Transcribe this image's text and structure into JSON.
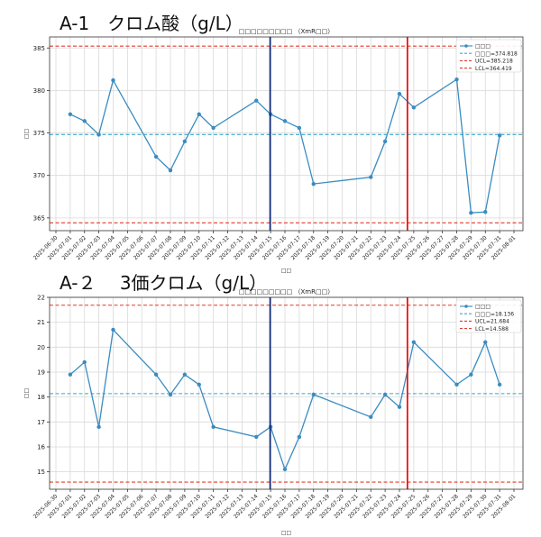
{
  "sections": [
    {
      "title": "A-1　クロム酸（g/L）"
    },
    {
      "title": "A-２　 3価クロム（g/L）"
    }
  ],
  "chart_data": [
    {
      "type": "line",
      "title": "□□□□□□□□□ （XmR□□）",
      "xlabel": "□□",
      "ylabel": "□□",
      "categories": [
        "2025-06-30",
        "2025-07-01",
        "2025-07-02",
        "2025-07-03",
        "2025-07-04",
        "2025-07-05",
        "2025-07-06",
        "2025-07-07",
        "2025-07-08",
        "2025-07-09",
        "2025-07-10",
        "2025-07-11",
        "2025-07-12",
        "2025-07-13",
        "2025-07-14",
        "2025-07-15",
        "2025-07-16",
        "2025-07-17",
        "2025-07-18",
        "2025-07-19",
        "2025-07-20",
        "2025-07-21",
        "2025-07-22",
        "2025-07-23",
        "2025-07-24",
        "2025-07-25",
        "2025-07-26",
        "2025-07-27",
        "2025-07-28",
        "2025-07-29",
        "2025-07-30",
        "2025-07-31",
        "2025-08-01"
      ],
      "ylim": [
        363.5,
        386.3
      ],
      "yticks": [
        365,
        370,
        375,
        380,
        385
      ],
      "grid": true,
      "legend_position": "top-right",
      "series": [
        {
          "name": "□□□",
          "color": "#3a8cc0",
          "x": [
            "2025-07-01",
            "2025-07-02",
            "2025-07-03",
            "2025-07-04",
            "2025-07-07",
            "2025-07-08",
            "2025-07-09",
            "2025-07-10",
            "2025-07-11",
            "2025-07-14",
            "2025-07-15",
            "2025-07-16",
            "2025-07-17",
            "2025-07-18",
            "2025-07-22",
            "2025-07-23",
            "2025-07-24",
            "2025-07-25",
            "2025-07-28",
            "2025-07-29",
            "2025-07-30",
            "2025-07-31"
          ],
          "y": [
            377.2,
            376.4,
            374.8,
            381.2,
            372.2,
            370.6,
            374.0,
            377.2,
            375.6,
            378.8,
            377.2,
            376.4,
            375.6,
            369.0,
            369.8,
            374.0,
            379.6,
            378.0,
            381.3,
            365.6,
            365.7,
            374.7
          ]
        }
      ],
      "reference_lines": [
        {
          "label": "□□□=374.818",
          "value": 374.818,
          "color": "#3aa8c8"
        },
        {
          "label": "UCL=385.218",
          "value": 385.218,
          "color": "#e03c2c"
        },
        {
          "label": "LCL=364.419",
          "value": 364.419,
          "color": "#e03c2c"
        }
      ],
      "marker_lines": [
        {
          "x": "2025-07-15",
          "color": "#0d2a7a"
        },
        {
          "x": "2025-07-25",
          "color": "#ee1111"
        }
      ]
    },
    {
      "type": "line",
      "title": "□□□□□□□□□ （XmR□□）",
      "xlabel": "□□",
      "ylabel": "□□",
      "categories": [
        "2025-06-30",
        "2025-07-01",
        "2025-07-02",
        "2025-07-03",
        "2025-07-04",
        "2025-07-05",
        "2025-07-06",
        "2025-07-07",
        "2025-07-08",
        "2025-07-09",
        "2025-07-10",
        "2025-07-11",
        "2025-07-12",
        "2025-07-13",
        "2025-07-14",
        "2025-07-15",
        "2025-07-16",
        "2025-07-17",
        "2025-07-18",
        "2025-07-19",
        "2025-07-20",
        "2025-07-21",
        "2025-07-22",
        "2025-07-23",
        "2025-07-24",
        "2025-07-25",
        "2025-07-26",
        "2025-07-27",
        "2025-07-28",
        "2025-07-29",
        "2025-07-30",
        "2025-07-31",
        "2025-08-01"
      ],
      "ylim": [
        14.3,
        22.0
      ],
      "yticks": [
        15,
        16,
        17,
        18,
        19,
        20,
        21,
        22
      ],
      "grid": true,
      "legend_position": "top-right",
      "series": [
        {
          "name": "□□□",
          "color": "#3a8cc0",
          "x": [
            "2025-07-01",
            "2025-07-02",
            "2025-07-03",
            "2025-07-04",
            "2025-07-07",
            "2025-07-08",
            "2025-07-09",
            "2025-07-10",
            "2025-07-11",
            "2025-07-14",
            "2025-07-15",
            "2025-07-16",
            "2025-07-17",
            "2025-07-18",
            "2025-07-22",
            "2025-07-23",
            "2025-07-24",
            "2025-07-25",
            "2025-07-28",
            "2025-07-29",
            "2025-07-30",
            "2025-07-31"
          ],
          "y": [
            18.9,
            19.4,
            16.8,
            20.7,
            18.9,
            18.1,
            18.9,
            18.5,
            16.8,
            16.4,
            16.8,
            15.1,
            16.4,
            18.1,
            17.2,
            18.1,
            17.6,
            20.2,
            18.5,
            18.9,
            20.2,
            18.5
          ]
        }
      ],
      "reference_lines": [
        {
          "label": "□□□=18.136",
          "value": 18.136,
          "color": "#3aa8c8"
        },
        {
          "label": "UCL=21.684",
          "value": 21.684,
          "color": "#e03c2c"
        },
        {
          "label": "LCL=14.588",
          "value": 14.588,
          "color": "#e03c2c"
        }
      ],
      "marker_lines": [
        {
          "x": "2025-07-15",
          "color": "#0d2a7a"
        },
        {
          "x": "2025-07-25",
          "color": "#ee1111"
        }
      ]
    }
  ]
}
